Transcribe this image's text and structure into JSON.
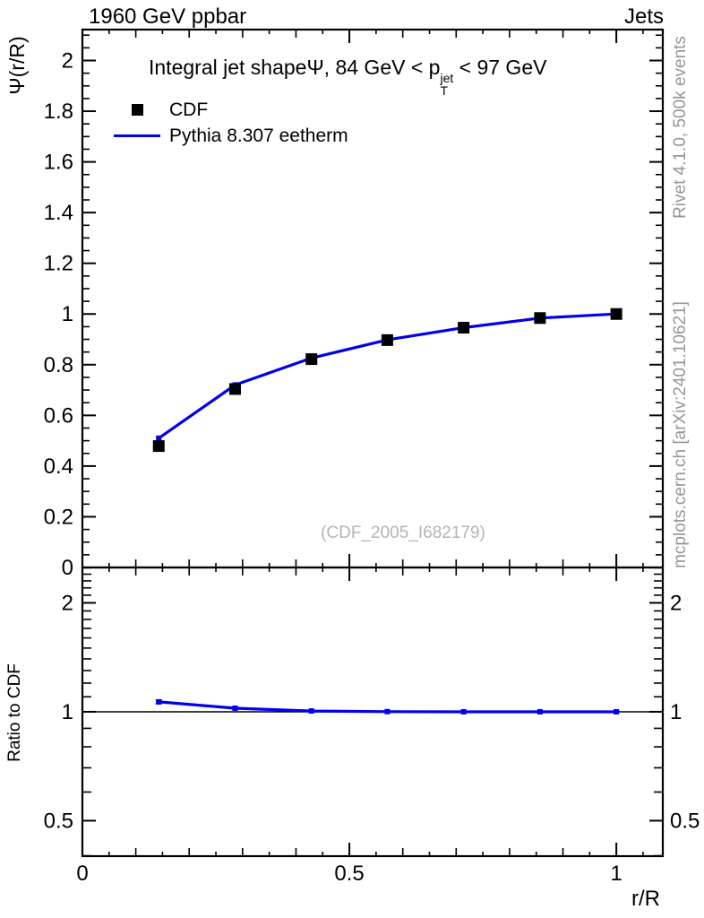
{
  "header": {
    "left_label": "1960 GeV ppbar",
    "right_label": "Jets"
  },
  "title": {
    "full": "Integral jet shape Ψ, 84 GeV < p_T^jet < 97 GeV",
    "prefix": "Integral jet shape",
    "symbol": "Ψ",
    "mid": ", 84 GeV < p",
    "sup": "jet",
    "sub": "T",
    "suffix": " < 97 GeV"
  },
  "legend": {
    "items": [
      {
        "label": "CDF",
        "marker": "filled-square",
        "color": "#000000"
      },
      {
        "label": "Pythia 8.307 eetherm",
        "marker": "line",
        "color": "#0000ee"
      }
    ]
  },
  "watermark": "(CDF_2005_I682179)",
  "side_text": {
    "rivet": "Rivet 4.1.0,  500k events",
    "mcplots": "mcplots.cern.ch [arXiv:2401.10621]"
  },
  "axis_titles": {
    "y_main": "Ψ(r/R)",
    "y_ratio": "Ratio to CDF",
    "x": "r/R"
  },
  "colors": {
    "pythia_blue": "#0000ee",
    "cdf_black": "#000000",
    "side_gray": "#969696",
    "watermark_gray": "#b4b4b4",
    "frame_black": "#000000"
  },
  "chart_data": {
    "type": "line",
    "title": "Integral jet shape Ψ, 84 GeV < p_T^jet < 97 GeV",
    "xlabel": "r/R",
    "ylabel": "Ψ(r/R)",
    "ratio_ylabel": "Ratio to CDF",
    "x": [
      0.143,
      0.286,
      0.429,
      0.571,
      0.714,
      0.857,
      1.0
    ],
    "series": [
      {
        "name": "CDF",
        "style": "markers",
        "marker": "square",
        "color": "#000000",
        "values": [
          0.479,
          0.704,
          0.822,
          0.897,
          0.946,
          0.984,
          1.0
        ]
      },
      {
        "name": "Pythia 8.307 eetherm",
        "style": "line-markers",
        "color": "#0000ee",
        "values": [
          0.51,
          0.72,
          0.826,
          0.898,
          0.946,
          0.984,
          1.0
        ]
      }
    ],
    "ratio_panel": {
      "label": "Ratio to CDF",
      "reference_value": 1,
      "series": {
        "name": "Pythia 8.307 eetherm",
        "color": "#0000ee",
        "values": [
          1.065,
          1.023,
          1.005,
          1.001,
          1.0,
          1.0,
          1.0
        ],
        "errors": [
          0.012,
          0.006,
          0.004,
          0.003,
          0.002,
          0.002,
          0.002
        ]
      }
    },
    "axes": {
      "x": {
        "min": 0,
        "max": 1.087,
        "major_ticks": [
          0,
          0.5,
          1
        ],
        "major_labels": [
          "0",
          "0.5",
          "1"
        ],
        "medium_step": 0.1,
        "minor_step": 0.05
      },
      "y_main": {
        "min": 0,
        "max": 2.122,
        "minor_step": 0.05,
        "label_values": [
          0,
          0.2,
          0.4,
          0.6,
          0.8,
          1,
          1.2,
          1.4,
          1.6,
          1.8,
          2
        ],
        "labels": [
          "0",
          "0.2",
          "0.4",
          "0.6",
          "0.8",
          "1",
          "1.2",
          "1.4",
          "1.6",
          "1.8",
          "2"
        ]
      },
      "y_ratio": {
        "scale": "log",
        "min": 0.399,
        "max": 2.505,
        "major_ticks": [
          0.5,
          1,
          2
        ],
        "major_labels": [
          "0.5",
          "1",
          "2"
        ],
        "minor_ticks": [
          0.4,
          0.6,
          0.7,
          0.8,
          0.9,
          1.1,
          1.2,
          1.3,
          1.4,
          1.5,
          1.6,
          1.7,
          1.8,
          1.9,
          2.1,
          2.2,
          2.3,
          2.4,
          2.5
        ]
      }
    },
    "grid": false,
    "legend_position": "top-left"
  }
}
